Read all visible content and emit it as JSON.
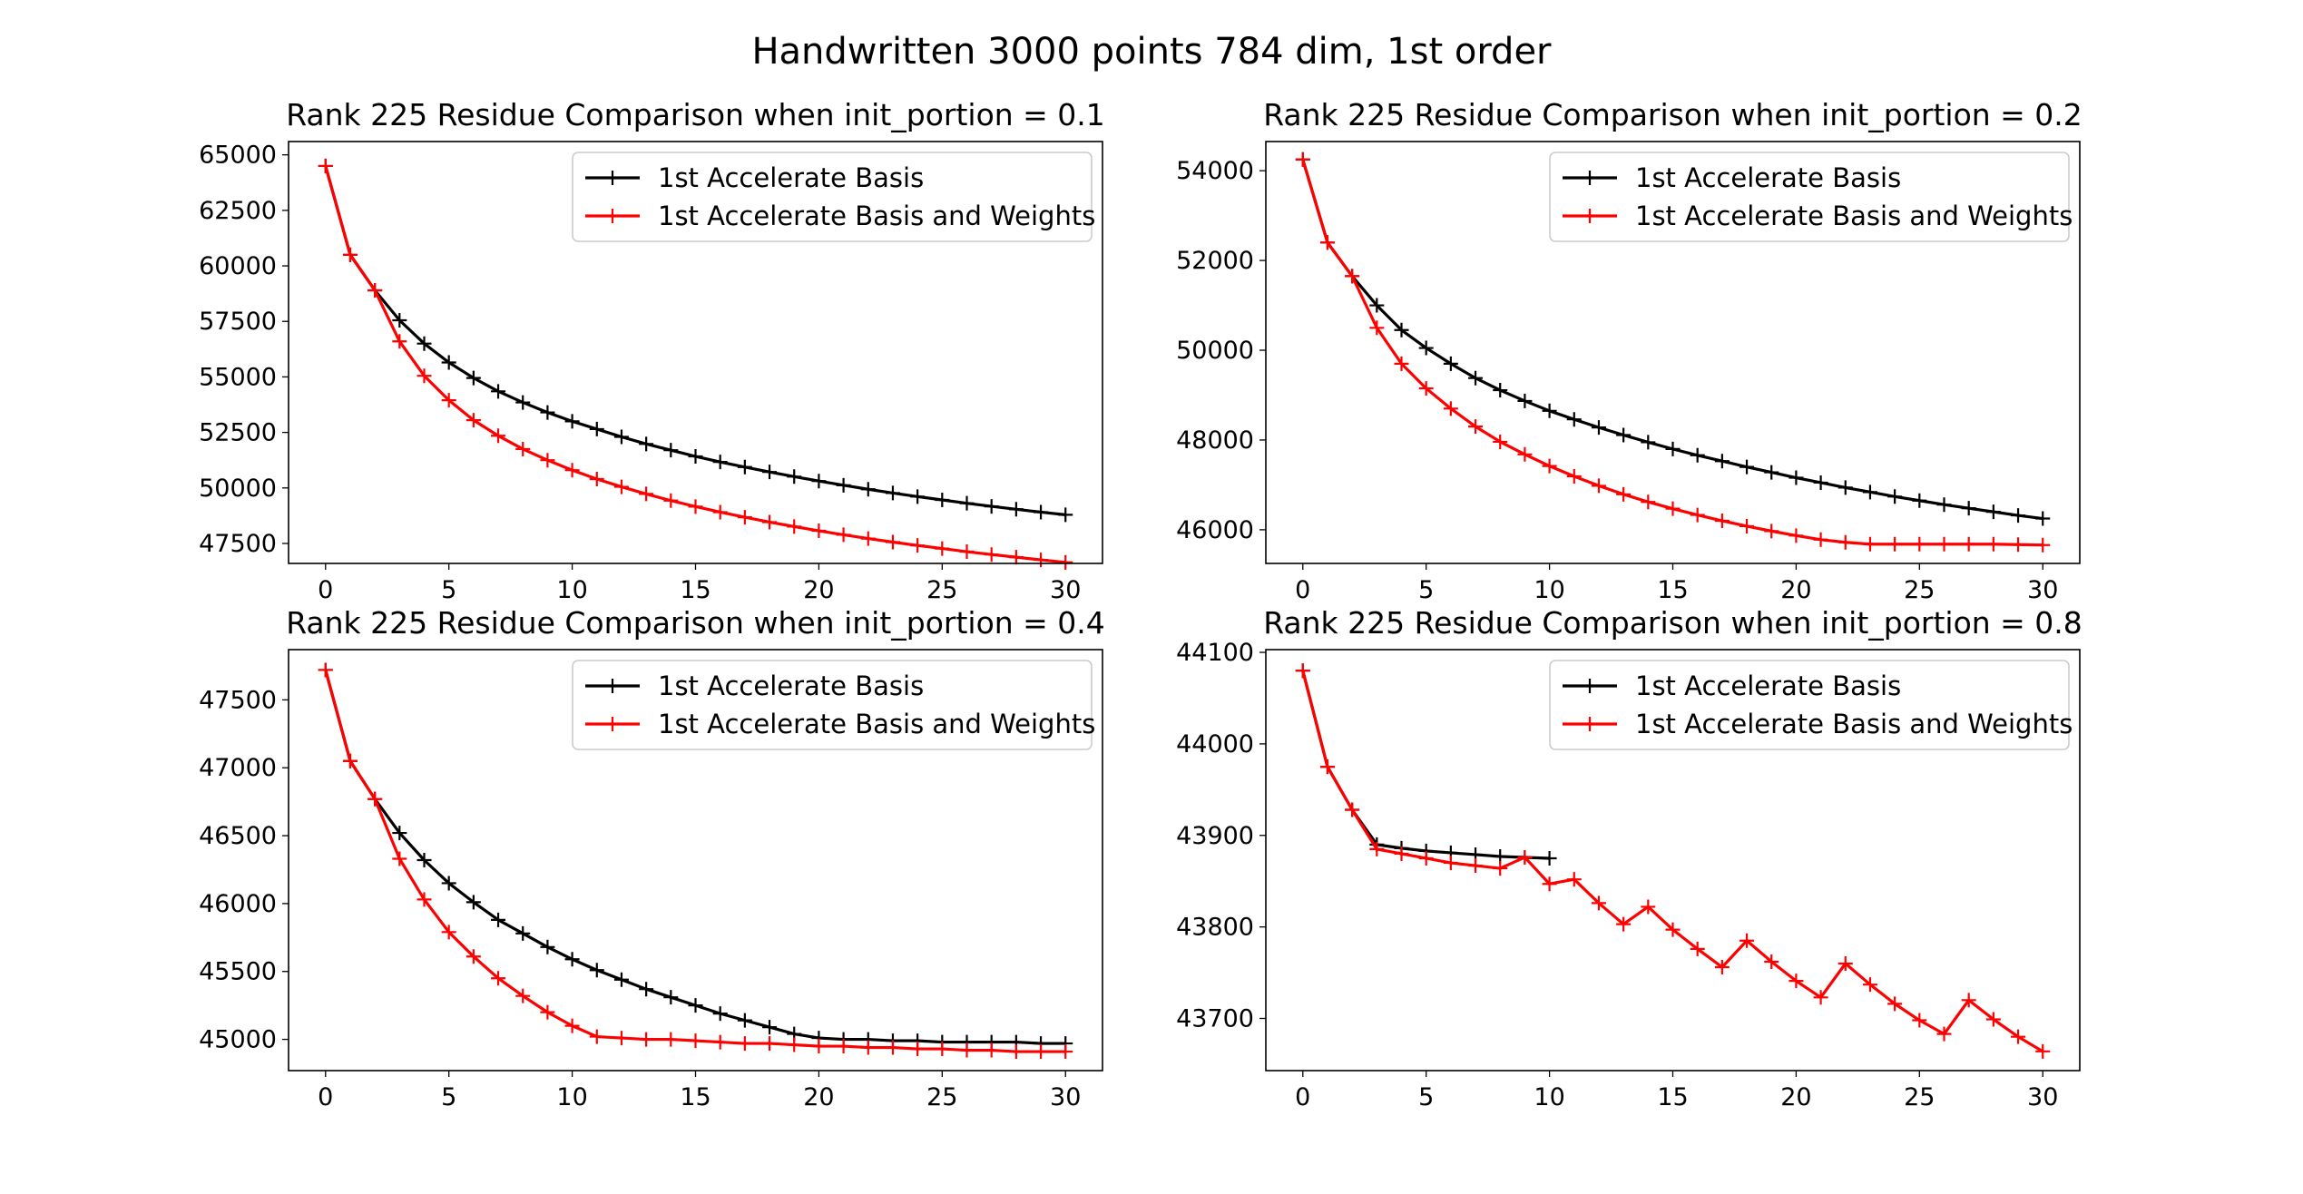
{
  "figure": {
    "suptitle": "Handwritten 3000 points 784 dim, 1st order"
  },
  "chart_data": [
    {
      "type": "line",
      "title": "Rank 225 Residue Comparison when init_portion = 0.1",
      "xlabel": "",
      "ylabel": "",
      "xlim": [
        -1.5,
        31.5
      ],
      "ylim": [
        46600,
        65600
      ],
      "xticks": [
        0,
        5,
        10,
        15,
        20,
        25,
        30
      ],
      "yticks": [
        47500,
        50000,
        52500,
        55000,
        57500,
        60000,
        62500,
        65000
      ],
      "legend_position": "upper right",
      "series": [
        {
          "name": "1st Accelerate Basis",
          "color": "#000000",
          "marker": "+",
          "x": [
            0,
            1,
            2,
            3,
            4,
            5,
            6,
            7,
            8,
            9,
            10,
            11,
            12,
            13,
            14,
            15,
            16,
            17,
            18,
            19,
            20,
            21,
            22,
            23,
            24,
            25,
            26,
            27,
            28,
            29,
            30
          ],
          "y": [
            64500,
            60500,
            58900,
            57550,
            56500,
            55650,
            54950,
            54350,
            53850,
            53400,
            53000,
            52650,
            52300,
            51980,
            51700,
            51420,
            51170,
            50940,
            50720,
            50510,
            50310,
            50120,
            49940,
            49770,
            49610,
            49460,
            49310,
            49170,
            49040,
            48910,
            48790
          ]
        },
        {
          "name": "1st Accelerate Basis and Weights",
          "color": "#ff0000",
          "marker": "+",
          "x": [
            0,
            1,
            2,
            3,
            4,
            5,
            6,
            7,
            8,
            9,
            10,
            11,
            12,
            13,
            14,
            15,
            16,
            17,
            18,
            19,
            20,
            21,
            22,
            23,
            24,
            25,
            26,
            27,
            28,
            29,
            30
          ],
          "y": [
            64500,
            60500,
            58900,
            56600,
            55050,
            53950,
            53050,
            52350,
            51750,
            51250,
            50800,
            50400,
            50050,
            49730,
            49430,
            49160,
            48910,
            48680,
            48460,
            48260,
            48070,
            47890,
            47720,
            47560,
            47410,
            47270,
            47130,
            47000,
            46880,
            46760,
            46650
          ]
        }
      ]
    },
    {
      "type": "line",
      "title": "Rank 225 Residue Comparison when init_portion = 0.2",
      "xlabel": "",
      "ylabel": "",
      "xlim": [
        -1.5,
        31.5
      ],
      "ylim": [
        45250,
        54650
      ],
      "xticks": [
        0,
        5,
        10,
        15,
        20,
        25,
        30
      ],
      "yticks": [
        46000,
        48000,
        50000,
        52000,
        54000
      ],
      "legend_position": "upper right",
      "series": [
        {
          "name": "1st Accelerate Basis",
          "color": "#000000",
          "marker": "+",
          "x": [
            0,
            1,
            2,
            3,
            4,
            5,
            6,
            7,
            8,
            9,
            10,
            11,
            12,
            13,
            14,
            15,
            16,
            17,
            18,
            19,
            20,
            21,
            22,
            23,
            24,
            25,
            26,
            27,
            28,
            29,
            30
          ],
          "y": [
            54250,
            52400,
            51650,
            51000,
            50450,
            50050,
            49700,
            49380,
            49110,
            48870,
            48650,
            48460,
            48280,
            48110,
            47950,
            47800,
            47660,
            47530,
            47400,
            47280,
            47160,
            47050,
            46940,
            46840,
            46740,
            46650,
            46560,
            46480,
            46400,
            46320,
            46250
          ]
        },
        {
          "name": "1st Accelerate Basis and Weights",
          "color": "#ff0000",
          "marker": "+",
          "x": [
            0,
            1,
            2,
            3,
            4,
            5,
            6,
            7,
            8,
            9,
            10,
            11,
            12,
            13,
            14,
            15,
            16,
            17,
            18,
            19,
            20,
            21,
            22,
            23,
            24,
            25,
            26,
            27,
            28,
            29,
            30
          ],
          "y": [
            54250,
            52400,
            51650,
            50500,
            49700,
            49150,
            48700,
            48300,
            47960,
            47680,
            47420,
            47190,
            46980,
            46790,
            46620,
            46470,
            46330,
            46200,
            46080,
            45970,
            45870,
            45780,
            45720,
            45680,
            45680,
            45680,
            45680,
            45680,
            45680,
            45670,
            45660
          ]
        }
      ]
    },
    {
      "type": "line",
      "title": "Rank 225 Residue Comparison when init_portion = 0.4",
      "xlabel": "",
      "ylabel": "",
      "xlim": [
        -1.5,
        31.5
      ],
      "ylim": [
        44770,
        47870
      ],
      "xticks": [
        0,
        5,
        10,
        15,
        20,
        25,
        30
      ],
      "yticks": [
        45000,
        45500,
        46000,
        46500,
        47000,
        47500
      ],
      "legend_position": "upper right",
      "series": [
        {
          "name": "1st Accelerate Basis",
          "color": "#000000",
          "marker": "+",
          "x": [
            0,
            1,
            2,
            3,
            4,
            5,
            6,
            7,
            8,
            9,
            10,
            11,
            12,
            13,
            14,
            15,
            16,
            17,
            18,
            19,
            20,
            21,
            22,
            23,
            24,
            25,
            26,
            27,
            28,
            29,
            30
          ],
          "y": [
            47720,
            47050,
            46770,
            46520,
            46320,
            46150,
            46010,
            45880,
            45780,
            45680,
            45590,
            45510,
            45440,
            45370,
            45310,
            45250,
            45190,
            45140,
            45090,
            45040,
            45010,
            45000,
            45000,
            44990,
            44990,
            44980,
            44980,
            44980,
            44980,
            44970,
            44970
          ]
        },
        {
          "name": "1st Accelerate Basis and Weights",
          "color": "#ff0000",
          "marker": "+",
          "x": [
            0,
            1,
            2,
            3,
            4,
            5,
            6,
            7,
            8,
            9,
            10,
            11,
            12,
            13,
            14,
            15,
            16,
            17,
            18,
            19,
            20,
            21,
            22,
            23,
            24,
            25,
            26,
            27,
            28,
            29,
            30
          ],
          "y": [
            47720,
            47050,
            46770,
            46330,
            46030,
            45790,
            45610,
            45450,
            45320,
            45200,
            45100,
            45020,
            45010,
            45000,
            45000,
            44990,
            44980,
            44970,
            44970,
            44960,
            44950,
            44950,
            44940,
            44940,
            44930,
            44930,
            44920,
            44920,
            44910,
            44910,
            44910
          ]
        }
      ]
    },
    {
      "type": "line",
      "title": "Rank 225 Residue Comparison when init_portion = 0.8",
      "xlabel": "",
      "ylabel": "",
      "xlim": [
        -1.5,
        31.5
      ],
      "ylim": [
        43643,
        44103
      ],
      "xticks": [
        0,
        5,
        10,
        15,
        20,
        25,
        30
      ],
      "yticks": [
        43700,
        43800,
        43900,
        44000,
        44100
      ],
      "legend_position": "upper right",
      "series": [
        {
          "name": "1st Accelerate Basis",
          "color": "#000000",
          "marker": "+",
          "x": [
            0,
            1,
            2,
            3,
            4,
            5,
            6,
            7,
            8,
            9,
            10
          ],
          "y": [
            44080,
            43975,
            43928,
            43890,
            43886,
            43883,
            43881,
            43879,
            43877,
            43876,
            43875
          ]
        },
        {
          "name": "1st Accelerate Basis and Weights",
          "color": "#ff0000",
          "marker": "+",
          "x": [
            0,
            1,
            2,
            3,
            4,
            5,
            6,
            7,
            8,
            9,
            10,
            11,
            12,
            13,
            14,
            15,
            16,
            17,
            18,
            19,
            20,
            21,
            22,
            23,
            24,
            25,
            26,
            27,
            28,
            29,
            30
          ],
          "y": [
            44080,
            43975,
            43928,
            43885,
            43880,
            43875,
            43870,
            43867,
            43864,
            43876,
            43847,
            43852,
            43826,
            43803,
            43822,
            43797,
            43776,
            43756,
            43785,
            43762,
            43741,
            43723,
            43760,
            43737,
            43716,
            43698,
            43683,
            43720,
            43699,
            43680,
            43664
          ]
        }
      ]
    }
  ]
}
